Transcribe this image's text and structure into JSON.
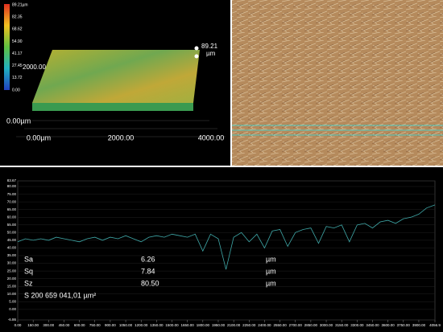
{
  "view3d": {
    "scale_labels": [
      "89.21µm",
      "82.35",
      "68.62",
      "54.90",
      "41.17",
      "27.45",
      "13.72",
      "0.00"
    ],
    "y_label": "2000.00",
    "marker_value": "89.21",
    "marker_unit": "µm",
    "z_label": "0.00µm",
    "x_labels": [
      "0.00µm",
      "2000.00",
      "4000.00"
    ]
  },
  "profile": {
    "type": "line",
    "color": "#3fa8a8",
    "x": [
      0,
      75,
      150,
      225,
      300,
      375,
      450,
      525,
      600,
      675,
      750,
      825,
      900,
      975,
      1050,
      1125,
      1200,
      1275,
      1350,
      1425,
      1500,
      1575,
      1650,
      1725,
      1800,
      1875,
      1950,
      2025,
      2100,
      2175,
      2250,
      2325,
      2400,
      2475,
      2550,
      2625,
      2700,
      2775,
      2850,
      2925,
      3000,
      3075,
      3150,
      3225,
      3300,
      3375,
      3450,
      3525,
      3600,
      3675,
      3750,
      3825,
      3900,
      3975,
      4056.9
    ],
    "values": [
      44,
      46,
      45,
      46,
      45,
      47,
      46,
      45,
      44,
      46,
      47,
      45,
      47,
      46,
      48,
      46,
      44,
      47,
      48,
      47,
      49,
      48,
      47,
      49,
      38,
      49,
      46,
      26,
      47,
      50,
      44,
      49,
      40,
      51,
      52,
      41,
      50,
      52,
      53,
      43,
      54,
      53,
      55,
      44,
      55,
      56,
      53,
      57,
      58,
      56,
      59,
      60,
      62,
      66,
      68
    ],
    "xlim": [
      0,
      4056.9
    ],
    "ylim": [
      -6.86,
      83.67
    ],
    "xticks": [
      {
        "value": 0,
        "label": "0.00"
      },
      {
        "value": 150,
        "label": "150.00"
      },
      {
        "value": 300,
        "label": "300.00"
      },
      {
        "value": 450,
        "label": "450.00"
      },
      {
        "value": 600,
        "label": "600.00"
      },
      {
        "value": 750,
        "label": "750.00"
      },
      {
        "value": 900,
        "label": "900.00"
      },
      {
        "value": 1050,
        "label": "1050.00"
      },
      {
        "value": 1200,
        "label": "1200.00"
      },
      {
        "value": 1350,
        "label": "1350.00"
      },
      {
        "value": 1500,
        "label": "1500.00"
      },
      {
        "value": 1650,
        "label": "1650.00"
      },
      {
        "value": 1800,
        "label": "1800.00"
      },
      {
        "value": 1950,
        "label": "1950.00"
      },
      {
        "value": 2100,
        "label": "2100.00"
      },
      {
        "value": 2250,
        "label": "2250.00"
      },
      {
        "value": 2400,
        "label": "2400.00"
      },
      {
        "value": 2550,
        "label": "2550.00"
      },
      {
        "value": 2700,
        "label": "2700.00"
      },
      {
        "value": 2850,
        "label": "2850.00"
      },
      {
        "value": 3000,
        "label": "3000.00"
      },
      {
        "value": 3150,
        "label": "3150.00"
      },
      {
        "value": 3300,
        "label": "3300.00"
      },
      {
        "value": 3450,
        "label": "3450.00"
      },
      {
        "value": 3600,
        "label": "3600.00"
      },
      {
        "value": 3750,
        "label": "3750.00"
      },
      {
        "value": 3900,
        "label": "3900.00"
      },
      4056.9
    ],
    "yticks": [
      83.67,
      {
        "value": 80,
        "label": "80.00"
      },
      {
        "value": 75,
        "label": "75.00"
      },
      {
        "value": 70,
        "label": "70.00"
      },
      {
        "value": 65,
        "label": "65.00"
      },
      {
        "value": 60,
        "label": "60.00"
      },
      {
        "value": 55,
        "label": "55.00"
      },
      {
        "value": 50,
        "label": "50.00"
      },
      {
        "value": 45,
        "label": "45.00"
      },
      {
        "value": 40,
        "label": "40.00"
      },
      {
        "value": 35,
        "label": "35.00"
      },
      {
        "value": 30,
        "label": "30.00"
      },
      {
        "value": 25,
        "label": "25.00"
      },
      {
        "value": 20,
        "label": "20.00"
      },
      {
        "value": 15,
        "label": "15.00"
      },
      {
        "value": 10,
        "label": "10.00"
      },
      {
        "value": 5,
        "label": "5.00"
      },
      {
        "value": 0,
        "label": "0.00"
      },
      -6.86
    ]
  },
  "stats": {
    "rows": [
      [
        "Sa",
        "6.26",
        "µm"
      ],
      [
        "Sq",
        "7.84",
        "µm"
      ],
      [
        "Sz",
        "80.50",
        "µm"
      ]
    ],
    "area": "S 200 659 041,01 µm²"
  }
}
